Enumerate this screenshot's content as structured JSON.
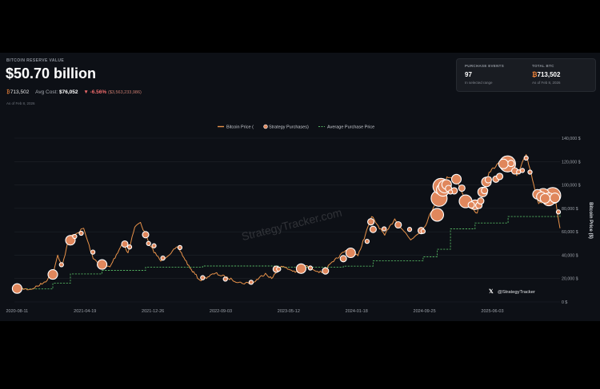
{
  "header": {
    "label": "BITCOIN RESERVE VALUE",
    "value": "$50.70 billion",
    "btc_symbol": "₿",
    "btc_amount": "713,502",
    "avg_cost_label": "Avg Cost:",
    "avg_cost": "$76,052",
    "change_arrow": "▼",
    "change_pct": "-6.56%",
    "change_amount": "($3,563,233,986)",
    "as_of": "As of Feb 8, 2026"
  },
  "stats": {
    "purchase_events_label": "PURCHASE EVENTS",
    "purchase_events_value": "97",
    "purchase_events_sub": "In selected range",
    "total_btc_label": "TOTAL BTC",
    "total_btc_value": "713,502",
    "total_btc_sub": "As of Feb 8, 2026"
  },
  "watermark": "StrategyTracker.com",
  "attribution": "@StrategyTracker",
  "colors": {
    "price_line": "#e8924a",
    "bubble": "#e0875c",
    "avg_line": "#52b060",
    "background": "#0d1016"
  },
  "chart_data": {
    "type": "line",
    "legend": {
      "placement": "top-center",
      "items": [
        "Bitcoin Price (",
        "Strategy Purchases)",
        "Average Purchase Price"
      ]
    },
    "ylabel": "Bitcoin Price ($)",
    "ylim": [
      0,
      140000
    ],
    "y_ticks": [
      "0 $",
      "20,000 $",
      "40,000 $",
      "60,000 $",
      "80,000 $",
      "100,000 $",
      "120,000 $",
      "140,000 $"
    ],
    "x_ticks": [
      "2020-08-11",
      "2021-04-19",
      "2021-12-26",
      "2022-09-03",
      "2023-05-12",
      "2024-01-18",
      "2024-09-25",
      "2025-06-03"
    ],
    "xlim": [
      "2020-08-01",
      "2026-02-08"
    ],
    "price_series": {
      "name": "Bitcoin Price",
      "points": [
        [
          "2020-08-11",
          11500
        ],
        [
          "2020-10-01",
          10800
        ],
        [
          "2020-11-15",
          16000
        ],
        [
          "2020-12-20",
          23000
        ],
        [
          "2021-01-08",
          40000
        ],
        [
          "2021-01-25",
          31000
        ],
        [
          "2021-02-20",
          56000
        ],
        [
          "2021-03-15",
          58000
        ],
        [
          "2021-04-14",
          63000
        ],
        [
          "2021-05-19",
          37000
        ],
        [
          "2021-06-22",
          31000
        ],
        [
          "2021-07-20",
          30000
        ],
        [
          "2021-09-06",
          51000
        ],
        [
          "2021-09-25",
          42000
        ],
        [
          "2021-10-20",
          64000
        ],
        [
          "2021-11-10",
          68000
        ],
        [
          "2021-12-15",
          48000
        ],
        [
          "2022-01-24",
          35000
        ],
        [
          "2022-03-28",
          47000
        ],
        [
          "2022-05-12",
          29000
        ],
        [
          "2022-06-18",
          18500
        ],
        [
          "2022-08-14",
          24500
        ],
        [
          "2022-10-15",
          19000
        ],
        [
          "2022-11-20",
          16000
        ],
        [
          "2022-12-31",
          16500
        ],
        [
          "2023-02-15",
          24500
        ],
        [
          "2023-03-10",
          20000
        ],
        [
          "2023-04-14",
          30500
        ],
        [
          "2023-06-15",
          25000
        ],
        [
          "2023-07-14",
          31000
        ],
        [
          "2023-09-11",
          25000
        ],
        [
          "2023-10-25",
          34500
        ],
        [
          "2023-12-08",
          44000
        ],
        [
          "2024-01-23",
          39500
        ],
        [
          "2024-03-14",
          73000
        ],
        [
          "2024-05-01",
          57000
        ],
        [
          "2024-06-07",
          71000
        ],
        [
          "2024-08-05",
          53000
        ],
        [
          "2024-09-25",
          64000
        ],
        [
          "2024-11-12",
          89000
        ],
        [
          "2024-12-17",
          107000
        ],
        [
          "2025-01-20",
          106000
        ],
        [
          "2025-02-28",
          84000
        ],
        [
          "2025-04-08",
          76000
        ],
        [
          "2025-05-22",
          111000
        ],
        [
          "2025-07-14",
          122000
        ],
        [
          "2025-08-14",
          124000
        ],
        [
          "2025-09-01",
          108000
        ],
        [
          "2025-10-06",
          126000
        ],
        [
          "2025-11-21",
          84000
        ],
        [
          "2025-12-31",
          88000
        ],
        [
          "2026-01-20",
          90000
        ],
        [
          "2026-02-08",
          63000
        ]
      ]
    },
    "avg_purchase_series": {
      "name": "Average Purchase Price",
      "points": [
        [
          "2020-08-11",
          11100
        ],
        [
          "2020-12-21",
          16000
        ],
        [
          "2021-02-24",
          24000
        ],
        [
          "2021-06-21",
          27000
        ],
        [
          "2021-11-29",
          29800
        ],
        [
          "2022-06-28",
          30700
        ],
        [
          "2023-04-05",
          29800
        ],
        [
          "2023-11-30",
          30600
        ],
        [
          "2024-03-19",
          35100
        ],
        [
          "2024-09-20",
          38600
        ],
        [
          "2024-11-11",
          45000
        ],
        [
          "2024-12-30",
          62500
        ],
        [
          "2025-03-31",
          67500
        ],
        [
          "2025-07-31",
          73000
        ],
        [
          "2026-02-08",
          76052
        ]
      ]
    },
    "purchases": [
      {
        "date": "2020-08-11",
        "price": 11500,
        "size": 3
      },
      {
        "date": "2020-12-21",
        "price": 23500,
        "size": 3
      },
      {
        "date": "2021-01-22",
        "price": 31800,
        "size": 1
      },
      {
        "date": "2021-02-24",
        "price": 52700,
        "size": 3
      },
      {
        "date": "2021-03-12",
        "price": 56000,
        "size": 1
      },
      {
        "date": "2021-04-05",
        "price": 58700,
        "size": 1
      },
      {
        "date": "2021-05-18",
        "price": 42600,
        "size": 1
      },
      {
        "date": "2021-06-21",
        "price": 32000,
        "size": 3
      },
      {
        "date": "2021-09-13",
        "price": 49500,
        "size": 2
      },
      {
        "date": "2021-10-01",
        "price": 47000,
        "size": 1
      },
      {
        "date": "2021-11-29",
        "price": 57500,
        "size": 2
      },
      {
        "date": "2021-12-10",
        "price": 50000,
        "size": 1
      },
      {
        "date": "2021-12-30",
        "price": 48000,
        "size": 1
      },
      {
        "date": "2022-02-01",
        "price": 37500,
        "size": 1
      },
      {
        "date": "2022-04-05",
        "price": 46500,
        "size": 1
      },
      {
        "date": "2022-06-28",
        "price": 20700,
        "size": 1
      },
      {
        "date": "2022-09-20",
        "price": 19500,
        "size": 1
      },
      {
        "date": "2022-12-24",
        "price": 16800,
        "size": 1
      },
      {
        "date": "2023-03-27",
        "price": 28000,
        "size": 2
      },
      {
        "date": "2023-04-05",
        "price": 28100,
        "size": 1
      },
      {
        "date": "2023-06-27",
        "price": 28500,
        "size": 3
      },
      {
        "date": "2023-07-31",
        "price": 29000,
        "size": 1
      },
      {
        "date": "2023-09-25",
        "price": 26500,
        "size": 2
      },
      {
        "date": "2023-11-30",
        "price": 37000,
        "size": 2
      },
      {
        "date": "2023-12-27",
        "price": 42000,
        "size": 3
      },
      {
        "date": "2024-02-26",
        "price": 51800,
        "size": 1
      },
      {
        "date": "2024-03-11",
        "price": 68500,
        "size": 2
      },
      {
        "date": "2024-03-19",
        "price": 62000,
        "size": 2
      },
      {
        "date": "2024-04-29",
        "price": 62500,
        "size": 1
      },
      {
        "date": "2024-06-20",
        "price": 65900,
        "size": 2
      },
      {
        "date": "2024-08-01",
        "price": 62000,
        "size": 1
      },
      {
        "date": "2024-09-13",
        "price": 61000,
        "size": 2
      },
      {
        "date": "2024-09-20",
        "price": 60400,
        "size": 1
      },
      {
        "date": "2024-11-11",
        "price": 74500,
        "size": 4
      },
      {
        "date": "2024-11-18",
        "price": 88600,
        "size": 5
      },
      {
        "date": "2024-11-25",
        "price": 98800,
        "size": 5
      },
      {
        "date": "2024-12-02",
        "price": 95900,
        "size": 4
      },
      {
        "date": "2024-12-09",
        "price": 98700,
        "size": 4
      },
      {
        "date": "2024-12-16",
        "price": 100400,
        "size": 3
      },
      {
        "date": "2024-12-23",
        "price": 97000,
        "size": 2
      },
      {
        "date": "2024-12-30",
        "price": 94000,
        "size": 1
      },
      {
        "date": "2025-01-13",
        "price": 95000,
        "size": 2
      },
      {
        "date": "2025-01-21",
        "price": 105000,
        "size": 3
      },
      {
        "date": "2025-02-10",
        "price": 97300,
        "size": 2
      },
      {
        "date": "2025-02-24",
        "price": 86000,
        "size": 4
      },
      {
        "date": "2025-03-17",
        "price": 82900,
        "size": 2
      },
      {
        "date": "2025-03-31",
        "price": 83100,
        "size": 3
      },
      {
        "date": "2025-04-14",
        "price": 82600,
        "size": 2
      },
      {
        "date": "2025-04-21",
        "price": 86300,
        "size": 2
      },
      {
        "date": "2025-04-28",
        "price": 94000,
        "size": 3
      },
      {
        "date": "2025-05-05",
        "price": 95200,
        "size": 2
      },
      {
        "date": "2025-05-12",
        "price": 102600,
        "size": 3
      },
      {
        "date": "2025-05-19",
        "price": 104500,
        "size": 2
      },
      {
        "date": "2025-06-16",
        "price": 105000,
        "size": 2
      },
      {
        "date": "2025-06-30",
        "price": 107300,
        "size": 2
      },
      {
        "date": "2025-07-14",
        "price": 118000,
        "size": 3
      },
      {
        "date": "2025-07-29",
        "price": 118000,
        "size": 5
      },
      {
        "date": "2025-08-11",
        "price": 118400,
        "size": 2
      },
      {
        "date": "2025-08-25",
        "price": 112000,
        "size": 2
      },
      {
        "date": "2025-09-08",
        "price": 111200,
        "size": 1
      },
      {
        "date": "2025-09-22",
        "price": 112400,
        "size": 1
      },
      {
        "date": "2025-10-06",
        "price": 123000,
        "size": 1
      },
      {
        "date": "2025-10-20",
        "price": 111000,
        "size": 1
      },
      {
        "date": "2025-11-17",
        "price": 92000,
        "size": 3
      },
      {
        "date": "2025-12-01",
        "price": 90000,
        "size": 3
      },
      {
        "date": "2025-12-08",
        "price": 91500,
        "size": 4
      },
      {
        "date": "2025-12-15",
        "price": 88500,
        "size": 3
      },
      {
        "date": "2025-12-29",
        "price": 87700,
        "size": 4
      },
      {
        "date": "2026-01-12",
        "price": 91000,
        "size": 5
      },
      {
        "date": "2026-01-20",
        "price": 89000,
        "size": 3
      },
      {
        "date": "2026-02-02",
        "price": 77000,
        "size": 1
      }
    ]
  }
}
